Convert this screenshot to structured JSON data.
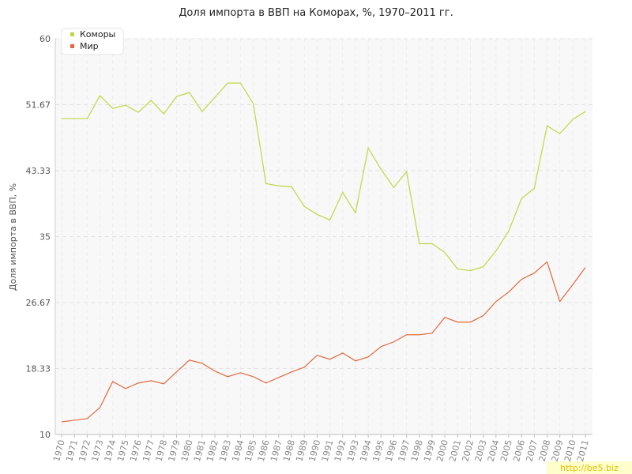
{
  "chart_data": {
    "type": "line",
    "title": "Доля импорта в ВВП на Коморах, %, 1970–2011 гг.",
    "y_label": "Доля импорта в ВВП, %",
    "watermark": "http://be5.biz",
    "categories": [
      "1970",
      "1971",
      "1972",
      "1973",
      "1974",
      "1975",
      "1976",
      "1977",
      "1978",
      "1979",
      "1980",
      "1981",
      "1982",
      "1983",
      "1984",
      "1985",
      "1986",
      "1987",
      "1988",
      "1989",
      "1990",
      "1991",
      "1992",
      "1993",
      "1994",
      "1995",
      "1996",
      "1997",
      "1998",
      "1999",
      "2000",
      "2001",
      "2002",
      "2003",
      "2004",
      "2005",
      "2006",
      "2007",
      "2008",
      "2009",
      "2010",
      "2011"
    ],
    "series": [
      {
        "name": "Коморы",
        "color": "#bcd843",
        "values": [
          49.9,
          49.9,
          49.9,
          52.8,
          51.2,
          51.6,
          50.7,
          52.2,
          50.5,
          52.7,
          53.2,
          50.8,
          52.6,
          54.4,
          54.4,
          51.8,
          41.7,
          41.4,
          41.3,
          38.8,
          37.8,
          37.1,
          40.6,
          38.0,
          46.2,
          43.5,
          41.2,
          43.2,
          34.1,
          34.1,
          33.0,
          30.9,
          30.7,
          31.2,
          33.2,
          35.7,
          39.8,
          41.1,
          49.0,
          48.0,
          49.8,
          50.8
        ]
      },
      {
        "name": "Мир",
        "color": "#e2683c",
        "values": [
          11.6,
          11.8,
          12.0,
          13.4,
          16.7,
          15.8,
          16.5,
          16.8,
          16.4,
          17.9,
          19.4,
          19.0,
          18.0,
          17.3,
          17.8,
          17.3,
          16.5,
          17.2,
          17.9,
          18.5,
          20.0,
          19.5,
          20.3,
          19.3,
          19.8,
          21.1,
          21.7,
          22.6,
          22.6,
          22.8,
          24.8,
          24.2,
          24.2,
          25.0,
          26.8,
          28.0,
          29.6,
          30.4,
          31.8,
          26.8,
          28.9,
          31.1
        ]
      }
    ],
    "ylim": [
      10,
      60
    ],
    "yticks": [
      10,
      18.33,
      26.67,
      35,
      43.33,
      51.67,
      60
    ],
    "grid": true,
    "legend": "top-left"
  }
}
